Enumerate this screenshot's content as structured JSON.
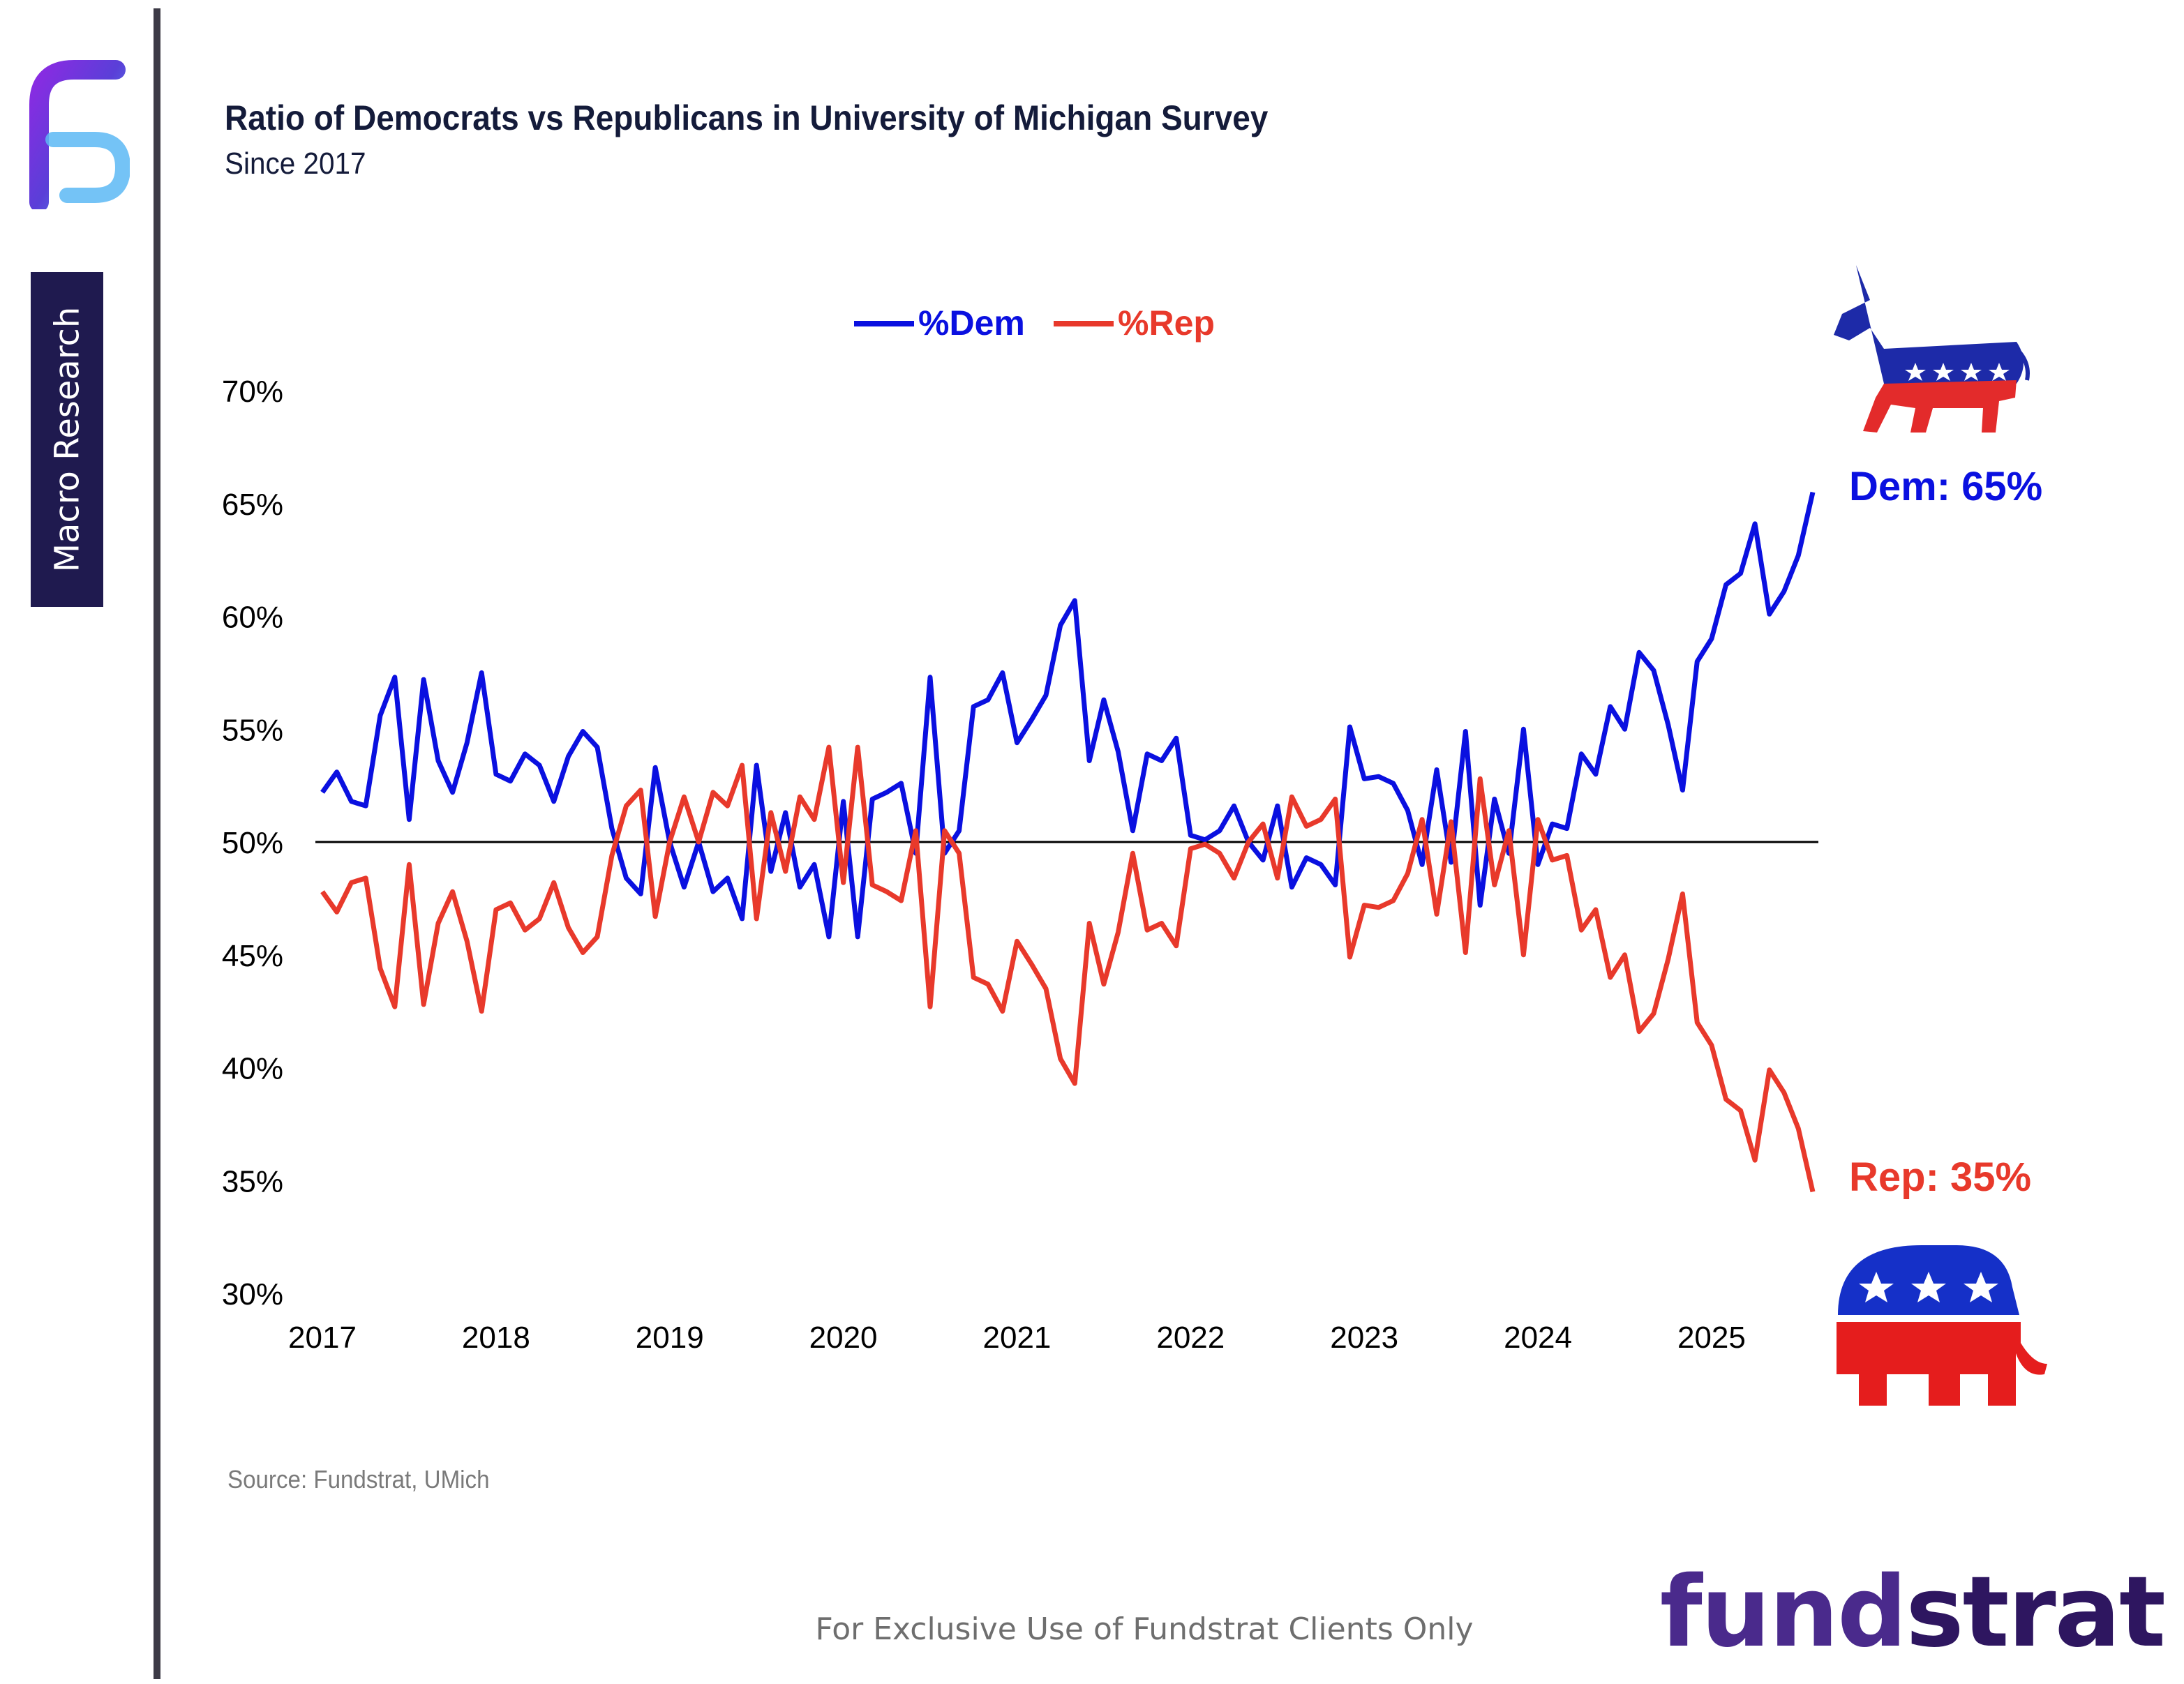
{
  "header": {
    "title": "Ratio of Democrats vs Republicans in University of Michigan Survey",
    "subtitle": "Since 2017"
  },
  "sidebar": {
    "label": "Macro Research"
  },
  "footer": {
    "source": "Source: Fundstrat, UMich",
    "disclaimer": "For Exclusive Use of Fundstrat Clients Only",
    "brand_prefix": "fund",
    "brand_suffix": "strat"
  },
  "callouts": {
    "dem": "Dem: 65%",
    "rep": "Rep: 35%"
  },
  "colors": {
    "dem": "#0a10e0",
    "rep": "#e8392b",
    "refline": "#000000",
    "brand": "#4a2a8c"
  },
  "icons": {
    "logo": "fundstrat-f-logo-icon",
    "dem": "democratic-donkey-icon",
    "rep": "republican-elephant-icon"
  },
  "chart_data": {
    "type": "line",
    "title": "Ratio of Democrats vs Republicans in University of Michigan Survey",
    "subtitle": "Since 2017",
    "xlabel": "",
    "ylabel": "",
    "xlim": [
      2017,
      2026
    ],
    "ylim": [
      30,
      70
    ],
    "x_ticks": [
      "2017",
      "2018",
      "2019",
      "2020",
      "2021",
      "2022",
      "2023",
      "2024",
      "2025"
    ],
    "y_ticks": [
      "30%",
      "35%",
      "40%",
      "45%",
      "50%",
      "55%",
      "60%",
      "65%",
      "70%"
    ],
    "y_tick_values": [
      30,
      35,
      40,
      45,
      50,
      55,
      60,
      65,
      70
    ],
    "reference_line": 50,
    "grid": false,
    "legend_position": "top-center",
    "series": [
      {
        "name": "%Dem",
        "color": "#0a10e0",
        "values": [
          [
            2017.0,
            52.2
          ],
          [
            2017.083,
            53.1
          ],
          [
            2017.167,
            51.8
          ],
          [
            2017.25,
            51.6
          ],
          [
            2017.333,
            55.6
          ],
          [
            2017.417,
            57.3
          ],
          [
            2017.5,
            51.0
          ],
          [
            2017.583,
            57.2
          ],
          [
            2017.667,
            53.6
          ],
          [
            2017.75,
            52.2
          ],
          [
            2017.833,
            54.4
          ],
          [
            2017.917,
            57.5
          ],
          [
            2018.0,
            53.0
          ],
          [
            2018.083,
            52.7
          ],
          [
            2018.167,
            53.9
          ],
          [
            2018.25,
            53.4
          ],
          [
            2018.333,
            51.8
          ],
          [
            2018.417,
            53.8
          ],
          [
            2018.5,
            54.9
          ],
          [
            2018.583,
            54.2
          ],
          [
            2018.667,
            50.6
          ],
          [
            2018.75,
            48.4
          ],
          [
            2018.833,
            47.7
          ],
          [
            2018.917,
            53.3
          ],
          [
            2019.0,
            50.0
          ],
          [
            2019.083,
            48.0
          ],
          [
            2019.167,
            50.0
          ],
          [
            2019.25,
            47.8
          ],
          [
            2019.333,
            48.4
          ],
          [
            2019.417,
            46.6
          ],
          [
            2019.5,
            53.4
          ],
          [
            2019.583,
            48.7
          ],
          [
            2019.667,
            51.3
          ],
          [
            2019.75,
            48.0
          ],
          [
            2019.833,
            49.0
          ],
          [
            2019.917,
            45.8
          ],
          [
            2020.0,
            51.8
          ],
          [
            2020.083,
            45.8
          ],
          [
            2020.167,
            51.9
          ],
          [
            2020.25,
            52.2
          ],
          [
            2020.333,
            52.6
          ],
          [
            2020.417,
            49.5
          ],
          [
            2020.5,
            57.3
          ],
          [
            2020.583,
            49.5
          ],
          [
            2020.667,
            50.5
          ],
          [
            2020.75,
            56.0
          ],
          [
            2020.833,
            56.3
          ],
          [
            2020.917,
            57.5
          ],
          [
            2021.0,
            54.4
          ],
          [
            2021.083,
            55.4
          ],
          [
            2021.167,
            56.5
          ],
          [
            2021.25,
            59.6
          ],
          [
            2021.333,
            60.7
          ],
          [
            2021.417,
            53.6
          ],
          [
            2021.5,
            56.3
          ],
          [
            2021.583,
            54.0
          ],
          [
            2021.667,
            50.5
          ],
          [
            2021.75,
            53.9
          ],
          [
            2021.833,
            53.6
          ],
          [
            2021.917,
            54.6
          ],
          [
            2022.0,
            50.3
          ],
          [
            2022.083,
            50.1
          ],
          [
            2022.167,
            50.5
          ],
          [
            2022.25,
            51.6
          ],
          [
            2022.333,
            50.0
          ],
          [
            2022.417,
            49.2
          ],
          [
            2022.5,
            51.6
          ],
          [
            2022.583,
            48.0
          ],
          [
            2022.667,
            49.3
          ],
          [
            2022.75,
            49.0
          ],
          [
            2022.833,
            48.1
          ],
          [
            2022.917,
            55.1
          ],
          [
            2023.0,
            52.8
          ],
          [
            2023.083,
            52.9
          ],
          [
            2023.167,
            52.6
          ],
          [
            2023.25,
            51.4
          ],
          [
            2023.333,
            49.0
          ],
          [
            2023.417,
            53.2
          ],
          [
            2023.5,
            49.1
          ],
          [
            2023.583,
            54.9
          ],
          [
            2023.667,
            47.2
          ],
          [
            2023.75,
            51.9
          ],
          [
            2023.833,
            49.5
          ],
          [
            2023.917,
            55.0
          ],
          [
            2024.0,
            49.0
          ],
          [
            2024.083,
            50.8
          ],
          [
            2024.167,
            50.6
          ],
          [
            2024.25,
            53.9
          ],
          [
            2024.333,
            53.0
          ],
          [
            2024.417,
            56.0
          ],
          [
            2024.5,
            55.0
          ],
          [
            2024.583,
            58.4
          ],
          [
            2024.667,
            57.6
          ],
          [
            2024.75,
            55.2
          ],
          [
            2024.833,
            52.3
          ],
          [
            2024.917,
            58.0
          ],
          [
            2025.0,
            59.0
          ],
          [
            2025.083,
            61.4
          ],
          [
            2025.167,
            61.9
          ],
          [
            2025.25,
            64.1
          ],
          [
            2025.333,
            60.1
          ],
          [
            2025.417,
            61.1
          ],
          [
            2025.5,
            62.7
          ],
          [
            2025.583,
            65.5
          ]
        ]
      },
      {
        "name": "%Rep",
        "color": "#e8392b",
        "values": [
          [
            2017.0,
            47.8
          ],
          [
            2017.083,
            46.9
          ],
          [
            2017.167,
            48.2
          ],
          [
            2017.25,
            48.4
          ],
          [
            2017.333,
            44.4
          ],
          [
            2017.417,
            42.7
          ],
          [
            2017.5,
            49.0
          ],
          [
            2017.583,
            42.8
          ],
          [
            2017.667,
            46.4
          ],
          [
            2017.75,
            47.8
          ],
          [
            2017.833,
            45.6
          ],
          [
            2017.917,
            42.5
          ],
          [
            2018.0,
            47.0
          ],
          [
            2018.083,
            47.3
          ],
          [
            2018.167,
            46.1
          ],
          [
            2018.25,
            46.6
          ],
          [
            2018.333,
            48.2
          ],
          [
            2018.417,
            46.2
          ],
          [
            2018.5,
            45.1
          ],
          [
            2018.583,
            45.8
          ],
          [
            2018.667,
            49.4
          ],
          [
            2018.75,
            51.6
          ],
          [
            2018.833,
            52.3
          ],
          [
            2018.917,
            46.7
          ],
          [
            2019.0,
            50.0
          ],
          [
            2019.083,
            52.0
          ],
          [
            2019.167,
            50.0
          ],
          [
            2019.25,
            52.2
          ],
          [
            2019.333,
            51.6
          ],
          [
            2019.417,
            53.4
          ],
          [
            2019.5,
            46.6
          ],
          [
            2019.583,
            51.3
          ],
          [
            2019.667,
            48.7
          ],
          [
            2019.75,
            52.0
          ],
          [
            2019.833,
            51.0
          ],
          [
            2019.917,
            54.2
          ],
          [
            2020.0,
            48.2
          ],
          [
            2020.083,
            54.2
          ],
          [
            2020.167,
            48.1
          ],
          [
            2020.25,
            47.8
          ],
          [
            2020.333,
            47.4
          ],
          [
            2020.417,
            50.5
          ],
          [
            2020.5,
            42.7
          ],
          [
            2020.583,
            50.5
          ],
          [
            2020.667,
            49.5
          ],
          [
            2020.75,
            44.0
          ],
          [
            2020.833,
            43.7
          ],
          [
            2020.917,
            42.5
          ],
          [
            2021.0,
            45.6
          ],
          [
            2021.083,
            44.6
          ],
          [
            2021.167,
            43.5
          ],
          [
            2021.25,
            40.4
          ],
          [
            2021.333,
            39.3
          ],
          [
            2021.417,
            46.4
          ],
          [
            2021.5,
            43.7
          ],
          [
            2021.583,
            46.0
          ],
          [
            2021.667,
            49.5
          ],
          [
            2021.75,
            46.1
          ],
          [
            2021.833,
            46.4
          ],
          [
            2021.917,
            45.4
          ],
          [
            2022.0,
            49.7
          ],
          [
            2022.083,
            49.9
          ],
          [
            2022.167,
            49.5
          ],
          [
            2022.25,
            48.4
          ],
          [
            2022.333,
            50.0
          ],
          [
            2022.417,
            50.8
          ],
          [
            2022.5,
            48.4
          ],
          [
            2022.583,
            52.0
          ],
          [
            2022.667,
            50.7
          ],
          [
            2022.75,
            51.0
          ],
          [
            2022.833,
            51.9
          ],
          [
            2022.917,
            44.9
          ],
          [
            2023.0,
            47.2
          ],
          [
            2023.083,
            47.1
          ],
          [
            2023.167,
            47.4
          ],
          [
            2023.25,
            48.6
          ],
          [
            2023.333,
            51.0
          ],
          [
            2023.417,
            46.8
          ],
          [
            2023.5,
            50.9
          ],
          [
            2023.583,
            45.1
          ],
          [
            2023.667,
            52.8
          ],
          [
            2023.75,
            48.1
          ],
          [
            2023.833,
            50.5
          ],
          [
            2023.917,
            45.0
          ],
          [
            2024.0,
            51.0
          ],
          [
            2024.083,
            49.2
          ],
          [
            2024.167,
            49.4
          ],
          [
            2024.25,
            46.1
          ],
          [
            2024.333,
            47.0
          ],
          [
            2024.417,
            44.0
          ],
          [
            2024.5,
            45.0
          ],
          [
            2024.583,
            41.6
          ],
          [
            2024.667,
            42.4
          ],
          [
            2024.75,
            44.8
          ],
          [
            2024.833,
            47.7
          ],
          [
            2024.917,
            42.0
          ],
          [
            2025.0,
            41.0
          ],
          [
            2025.083,
            38.6
          ],
          [
            2025.167,
            38.1
          ],
          [
            2025.25,
            35.9
          ],
          [
            2025.333,
            39.9
          ],
          [
            2025.417,
            38.9
          ],
          [
            2025.5,
            37.3
          ],
          [
            2025.583,
            34.5
          ]
        ]
      }
    ]
  }
}
